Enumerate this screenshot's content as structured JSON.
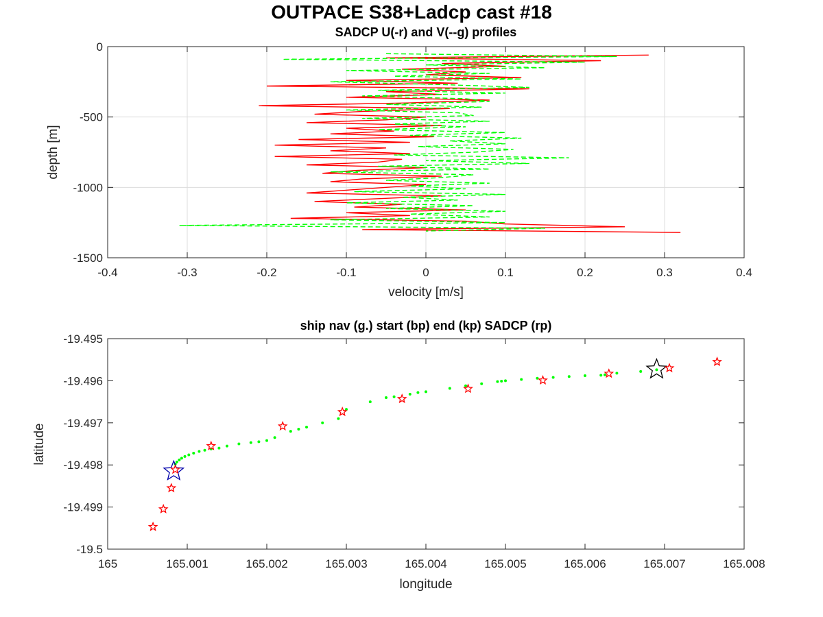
{
  "figure_title": "OUTPACE S38+Ladcp cast #18",
  "chart_data": [
    {
      "type": "line",
      "title": "SADCP U(-r) and V(--g) profiles",
      "xlabel": "velocity [m/s]",
      "ylabel": "depth [m]",
      "xlim": [
        -0.4,
        0.4
      ],
      "ylim": [
        -1500,
        0
      ],
      "xticks": [
        "-0.4",
        "-0.3",
        "-0.2",
        "-0.1",
        "0",
        "0.1",
        "0.2",
        "0.3",
        "0.4"
      ],
      "yticks": [
        "0",
        "-500",
        "-1000",
        "-1500"
      ],
      "grid": true,
      "series": [
        {
          "name": "U",
          "color": "#ff0000",
          "style": "solid",
          "depth": [
            -60,
            -80,
            -100,
            -120,
            -140,
            -160,
            -180,
            -200,
            -220,
            -240,
            -260,
            -280,
            -300,
            -320,
            -340,
            -360,
            -380,
            -400,
            -420,
            -440,
            -460,
            -480,
            -500,
            -520,
            -540,
            -560,
            -580,
            -600,
            -620,
            -640,
            -660,
            -680,
            -700,
            -720,
            -740,
            -760,
            -780,
            -800,
            -820,
            -840,
            -860,
            -880,
            -900,
            -920,
            -940,
            -960,
            -980,
            -1000,
            -1020,
            -1040,
            -1060,
            -1080,
            -1100,
            -1120,
            -1140,
            -1160,
            -1180,
            -1200,
            -1220,
            -1240,
            -1260,
            -1280,
            -1300,
            -1320
          ],
          "velocity": [
            0.28,
            -0.05,
            0.22,
            0.02,
            0.1,
            -0.03,
            0.05,
            0.0,
            0.12,
            -0.1,
            0.04,
            -0.2,
            0.13,
            -0.05,
            0.02,
            -0.1,
            0.08,
            -0.02,
            -0.21,
            0.03,
            -0.08,
            -0.14,
            0.0,
            -0.05,
            -0.15,
            0.02,
            -0.1,
            -0.04,
            -0.12,
            0.01,
            -0.16,
            -0.02,
            -0.19,
            -0.05,
            -0.12,
            -0.02,
            -0.19,
            -0.03,
            -0.06,
            -0.15,
            0.0,
            -0.09,
            -0.13,
            0.02,
            -0.08,
            -0.12,
            0.0,
            -0.05,
            -0.1,
            -0.15,
            0.02,
            -0.06,
            -0.14,
            -0.03,
            -0.09,
            0.05,
            -0.1,
            -0.02,
            -0.17,
            0.05,
            0.1,
            0.25,
            -0.08,
            0.32
          ]
        },
        {
          "name": "V",
          "color": "#00ff00",
          "style": "dashed",
          "depth": [
            -50,
            -70,
            -90,
            -110,
            -130,
            -150,
            -170,
            -190,
            -210,
            -230,
            -250,
            -270,
            -290,
            -310,
            -330,
            -350,
            -370,
            -390,
            -410,
            -430,
            -450,
            -470,
            -490,
            -510,
            -530,
            -550,
            -570,
            -590,
            -610,
            -630,
            -650,
            -670,
            -690,
            -710,
            -730,
            -750,
            -770,
            -790,
            -810,
            -830,
            -850,
            -870,
            -890,
            -910,
            -930,
            -950,
            -970,
            -990,
            -1010,
            -1030,
            -1050,
            -1070,
            -1090,
            -1110,
            -1130,
            -1150,
            -1170,
            -1190,
            -1210,
            -1230,
            -1250,
            -1270,
            -1290,
            -1310
          ],
          "velocity": [
            -0.05,
            0.24,
            -0.18,
            0.2,
            0.0,
            0.15,
            -0.1,
            0.08,
            -0.04,
            0.12,
            -0.12,
            0.02,
            0.13,
            -0.06,
            0.1,
            -0.08,
            0.05,
            0.08,
            -0.05,
            0.07,
            -0.1,
            0.04,
            0.06,
            -0.08,
            0.08,
            -0.04,
            0.05,
            -0.06,
            0.1,
            -0.02,
            0.12,
            0.03,
            0.1,
            -0.01,
            0.11,
            0.06,
            -0.04,
            0.18,
            0.0,
            0.13,
            -0.06,
            0.08,
            -0.12,
            0.06,
            0.02,
            -0.05,
            0.08,
            -0.02,
            0.05,
            -0.09,
            0.1,
            -0.03,
            0.04,
            -0.1,
            0.06,
            -0.05,
            0.1,
            -0.02,
            0.08,
            -0.12,
            0.1,
            -0.31,
            0.15,
            0.0
          ]
        }
      ]
    },
    {
      "type": "scatter",
      "title": "ship nav (g.) start (bp) end (kp) SADCP (rp)",
      "xlabel": "longitude",
      "ylabel": "latitude",
      "xlim": [
        165,
        165.008
      ],
      "ylim": [
        -19.5,
        -19.495
      ],
      "xticks": [
        "165",
        "165.001",
        "165.002",
        "165.003",
        "165.004",
        "165.005",
        "165.006",
        "165.007",
        "165.008"
      ],
      "yticks": [
        "-19.495",
        "-19.496",
        "-19.497",
        "-19.498",
        "-19.499",
        "-19.5"
      ],
      "grid": false,
      "series": [
        {
          "name": "ship nav",
          "color": "#00ff00",
          "marker": "dot",
          "x": [
            165.00085,
            165.00087,
            165.0009,
            165.00093,
            165.00097,
            165.00102,
            165.00108,
            165.00115,
            165.00122,
            165.0013,
            165.0014,
            165.0015,
            165.00165,
            165.0018,
            165.0019,
            165.002,
            165.0021,
            165.0023,
            165.0024,
            165.0025,
            165.0027,
            165.0029,
            165.003,
            165.0033,
            165.0035,
            165.0036,
            165.0038,
            165.0039,
            165.004,
            165.0043,
            165.0045,
            165.0047,
            165.0049,
            165.00495,
            165.005,
            165.0052,
            165.0054,
            165.0056,
            165.0058,
            165.006,
            165.0062,
            165.00625,
            165.0064,
            165.0067,
            165.0069
          ],
          "y": [
            -19.49798,
            -19.49793,
            -19.49788,
            -19.49784,
            -19.4978,
            -19.49776,
            -19.49772,
            -19.49768,
            -19.49765,
            -19.49762,
            -19.4976,
            -19.49755,
            -19.4975,
            -19.49747,
            -19.49745,
            -19.49742,
            -19.49735,
            -19.4972,
            -19.49715,
            -19.4971,
            -19.497,
            -19.4969,
            -19.49668,
            -19.4965,
            -19.4964,
            -19.49638,
            -19.49632,
            -19.49628,
            -19.49626,
            -19.49618,
            -19.49612,
            -19.49607,
            -19.49602,
            -19.49601,
            -19.496,
            -19.49597,
            -19.49594,
            -19.49592,
            -19.4959,
            -19.49588,
            -19.49587,
            -19.49586,
            -19.49582,
            -19.49578,
            -19.49574
          ]
        },
        {
          "name": "start",
          "color": "#0000aa",
          "marker": "star",
          "x": [
            165.00083
          ],
          "y": [
            -19.49815
          ]
        },
        {
          "name": "end",
          "color": "#000000",
          "marker": "star",
          "x": [
            165.0069
          ],
          "y": [
            -19.49573
          ]
        },
        {
          "name": "SADCP",
          "color": "#ff0000",
          "marker": "star",
          "x": [
            165.00057,
            165.0007,
            165.0008,
            165.00085,
            165.0013,
            165.0022,
            165.00295,
            165.0037,
            165.00453,
            165.00547,
            165.0063,
            165.00706,
            165.00766
          ],
          "y": [
            -19.49947,
            -19.49905,
            -19.49855,
            -19.49811,
            -19.49755,
            -19.49708,
            -19.49674,
            -19.49643,
            -19.49619,
            -19.49599,
            -19.49583,
            -19.4957,
            -19.49555
          ]
        }
      ]
    }
  ]
}
